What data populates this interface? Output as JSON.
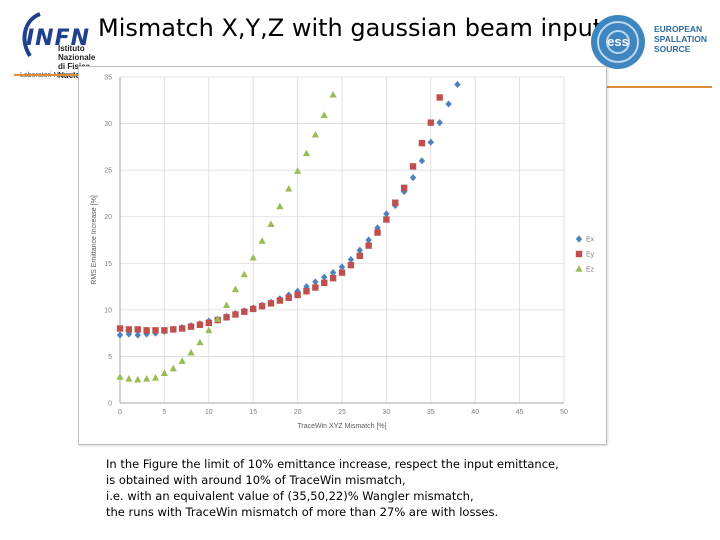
{
  "slide": {
    "title": "Mismatch X,Y,Z with gaussian beam input",
    "infn_logo": {
      "word": "INFN",
      "line1": "Istituto Nazionale",
      "line2": "di Fisica Nucleare",
      "lab": "Laboratori Nazionali"
    },
    "ess_logo": {
      "line1": "EUROPEAN",
      "line2": "SPALLATION",
      "line3": "SOURCE",
      "mark": "ess"
    },
    "accent_color": "#e08a3c",
    "caption": [
      "In the Figure the limit of 10% emittance increase, respect the input emittance,",
      "is obtained with around 10% of TraceWin mismatch,",
      "i.e. with an equivalent value of (35,50,22)% Wangler mismatch,",
      "the runs with TraceWin mismatch of more than 27% are with losses."
    ]
  },
  "chart_data": {
    "type": "scatter",
    "xlabel": "TraceWin XYZ Mismatch [%]",
    "ylabel": "RMS Emittance Increase [%]",
    "xlim": [
      0,
      50
    ],
    "ylim": [
      0,
      35
    ],
    "xticks": [
      0,
      5,
      10,
      15,
      20,
      25,
      30,
      35,
      40,
      45,
      50
    ],
    "yticks": [
      0,
      5,
      10,
      15,
      20,
      25,
      30,
      35
    ],
    "grid": true,
    "legend_position": "right",
    "series": [
      {
        "name": "Ex",
        "marker": "diamond",
        "color": "#4f81bd",
        "x": [
          0,
          1,
          2,
          3,
          4,
          5,
          6,
          7,
          8,
          9,
          10,
          11,
          12,
          13,
          14,
          15,
          16,
          17,
          18,
          19,
          20,
          21,
          22,
          23,
          24,
          25,
          26,
          27,
          28,
          29,
          30,
          31,
          32,
          33,
          34,
          35,
          36,
          37,
          38
        ],
        "y": [
          7.3,
          7.4,
          7.3,
          7.4,
          7.5,
          7.7,
          7.9,
          8.1,
          8.3,
          8.5,
          8.8,
          9.0,
          9.3,
          9.6,
          9.9,
          10.2,
          10.5,
          10.8,
          11.2,
          11.6,
          12.0,
          12.5,
          13.0,
          13.5,
          14.0,
          14.6,
          15.4,
          16.4,
          17.5,
          18.8,
          20.3,
          21.2,
          22.7,
          24.2,
          26.0,
          28.0,
          30.1,
          32.1,
          34.2
        ]
      },
      {
        "name": "Ey",
        "marker": "square",
        "color": "#c0504d",
        "x": [
          0,
          1,
          2,
          3,
          4,
          5,
          6,
          7,
          8,
          9,
          10,
          11,
          12,
          13,
          14,
          15,
          16,
          17,
          18,
          19,
          20,
          21,
          22,
          23,
          24,
          25,
          26,
          27,
          28,
          29,
          30,
          31,
          32,
          33,
          34,
          35,
          36
        ],
        "y": [
          8.0,
          7.9,
          7.9,
          7.8,
          7.8,
          7.8,
          7.9,
          8.0,
          8.2,
          8.4,
          8.6,
          8.9,
          9.2,
          9.5,
          9.8,
          10.1,
          10.4,
          10.7,
          11.0,
          11.3,
          11.6,
          12.0,
          12.4,
          12.9,
          13.4,
          14.0,
          14.8,
          15.8,
          16.9,
          18.3,
          19.7,
          21.5,
          23.1,
          25.4,
          27.9,
          30.1,
          32.8
        ]
      },
      {
        "name": "Ez",
        "marker": "triangle",
        "color": "#9bbb59",
        "x": [
          0,
          1,
          2,
          3,
          4,
          5,
          6,
          7,
          8,
          9,
          10,
          11,
          12,
          13,
          14,
          15,
          16,
          17,
          18,
          19,
          20,
          21,
          22,
          23,
          24
        ],
        "y": [
          2.8,
          2.6,
          2.5,
          2.6,
          2.7,
          3.2,
          3.7,
          4.5,
          5.4,
          6.5,
          7.8,
          9.0,
          10.5,
          12.2,
          13.8,
          15.6,
          17.4,
          19.2,
          21.1,
          23.0,
          24.9,
          26.8,
          28.8,
          30.9,
          33.1
        ]
      }
    ]
  }
}
